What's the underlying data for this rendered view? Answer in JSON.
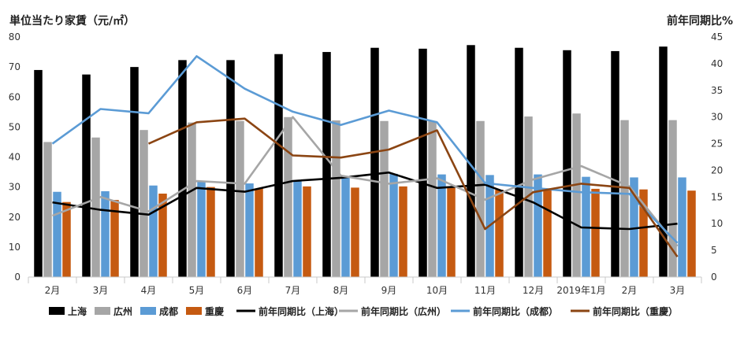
{
  "chart_data": {
    "type": "bar",
    "categories": [
      "2月",
      "3月",
      "4月",
      "5月",
      "6月",
      "7月",
      "8月",
      "9月",
      "10月",
      "11月",
      "12月",
      "2019年1月",
      "2月",
      "3月"
    ],
    "y_left": {
      "title": "単位当たり家賃（元/㎡）",
      "ylim": [
        0,
        80
      ],
      "ticks": [
        0,
        10,
        20,
        30,
        40,
        50,
        60,
        70,
        80
      ]
    },
    "y_right": {
      "title": "前年同期比%",
      "ylim": [
        0,
        45
      ],
      "ticks": [
        0,
        5,
        10,
        15,
        20,
        25,
        30,
        35,
        40,
        45
      ]
    },
    "grid": false,
    "legend_position": "bottom",
    "bar_series": [
      {
        "name": "上海",
        "color": "#000000",
        "values": [
          69,
          67.5,
          70,
          72.3,
          72.3,
          74.3,
          75,
          76.4,
          76.1,
          77.3,
          76.4,
          75.6,
          75.3,
          76.8
        ]
      },
      {
        "name": "広州",
        "color": "#a6a6a6",
        "values": [
          45,
          46.5,
          49,
          51.5,
          52,
          53.3,
          52.2,
          52,
          52,
          52,
          53.5,
          54.5,
          52.3,
          52.3
        ]
      },
      {
        "name": "成都",
        "color": "#5b9bd5",
        "values": [
          28.4,
          28.6,
          30.5,
          32,
          31.2,
          32.2,
          33.2,
          34.4,
          34.2,
          34,
          34.2,
          33.4,
          33.2,
          33.2
        ]
      },
      {
        "name": "重慶",
        "color": "#c55a11",
        "values": [
          25,
          25.7,
          27.8,
          30,
          29.5,
          30.2,
          29.8,
          30.2,
          30.2,
          29.1,
          29.4,
          29.4,
          29.2,
          28.8
        ]
      }
    ],
    "line_series": [
      {
        "name": "前年同期比（上海）",
        "color": "#000000",
        "values": [
          14,
          12.6,
          11.7,
          16.7,
          16,
          18,
          18.6,
          19.6,
          16.7,
          17.3,
          14,
          9.3,
          9,
          10
        ]
      },
      {
        "name": "前年同期比（広州）",
        "color": "#a6a6a6",
        "values": [
          11.5,
          15,
          12.3,
          18,
          17.5,
          30,
          19,
          17.5,
          18.5,
          14.5,
          18.3,
          20.8,
          17,
          5.8
        ]
      },
      {
        "name": "前年同期比（成都）",
        "color": "#5b9bd5",
        "values": [
          25,
          31.5,
          30.7,
          41.4,
          35.3,
          31,
          28.5,
          31.2,
          29,
          17.6,
          16.7,
          15.9,
          15.6,
          6.4
        ]
      },
      {
        "name": "前年同期比（重慶）",
        "color": "#8b4513",
        "values": [
          null,
          null,
          25,
          29,
          29.7,
          22.8,
          22.4,
          23.9,
          27.5,
          9,
          15.9,
          17.5,
          16.7,
          3.8
        ]
      }
    ]
  }
}
